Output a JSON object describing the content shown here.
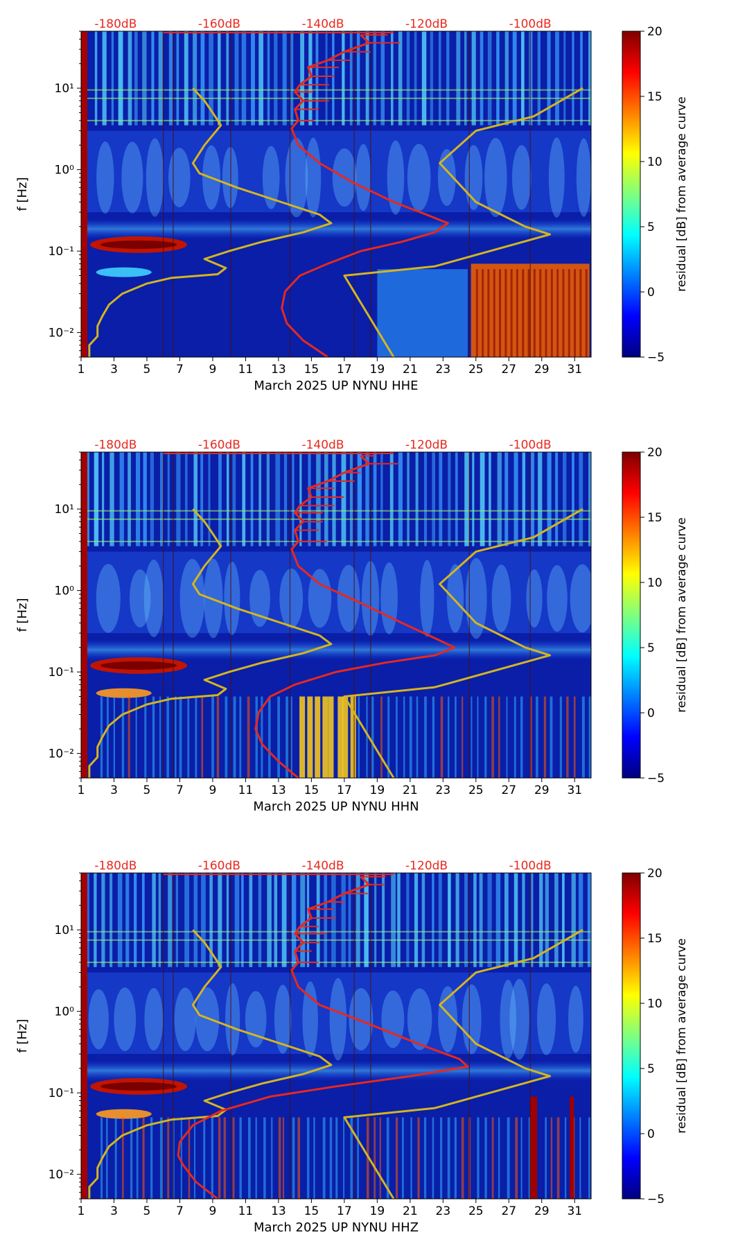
{
  "chart_data": [
    {
      "type": "heatmap",
      "xlabel": "March 2025 UP NYNU  HHE",
      "ylabel": "f [Hz]",
      "colorbar_label": "residual [dB] from average curve",
      "colorbar_ticks": [
        "−5",
        "0",
        "5",
        "10",
        "15",
        "20"
      ],
      "colorbar_range": [
        -5,
        20
      ],
      "x_ticks": [
        "1",
        "3",
        "5",
        "7",
        "9",
        "11",
        "13",
        "15",
        "17",
        "19",
        "21",
        "23",
        "25",
        "27",
        "29",
        "31"
      ],
      "y_ticks": [
        "10⁻²",
        "10⁻¹",
        "10⁰",
        "10¹"
      ],
      "top_labels": [
        "-180dB",
        "-160dB",
        "-140dB",
        "-120dB",
        "-100dB"
      ],
      "xlim": [
        1,
        32
      ],
      "ylim": [
        0.005,
        50
      ],
      "yscale": "log",
      "series": [
        {
          "color": "#d4b520",
          "x": [
            1.5,
            1.5,
            2.0,
            2.0,
            2.3,
            2.7,
            3.5,
            5.0,
            6.5,
            9.3,
            9.8,
            8.5,
            10.0,
            12.0,
            14.5,
            16.2,
            15.5,
            13.5,
            10.5,
            8.2,
            7.8,
            8.5,
            9.5,
            9.0,
            8.5,
            8.0,
            7.8
          ],
          "y": [
            0.005,
            0.007,
            0.009,
            0.012,
            0.016,
            0.022,
            0.03,
            0.04,
            0.047,
            0.052,
            0.062,
            0.08,
            0.1,
            0.13,
            0.17,
            0.22,
            0.28,
            0.38,
            0.6,
            0.9,
            1.2,
            2.0,
            3.5,
            5.0,
            7.0,
            9.0,
            10.0
          ]
        },
        {
          "color": "#e8281e",
          "x": [
            16.0,
            14.5,
            13.5,
            13.2,
            13.4,
            14.3,
            16.0,
            18.0,
            20.5,
            22.5,
            23.3,
            22.0,
            20.0,
            17.5,
            15.5,
            14.2,
            13.8,
            14.2,
            14.0,
            14.5,
            14.0,
            14.3,
            15.0,
            14.8,
            16.0,
            17.0,
            18.5,
            18.0
          ],
          "y": [
            0.005,
            0.008,
            0.013,
            0.02,
            0.032,
            0.05,
            0.07,
            0.1,
            0.13,
            0.17,
            0.22,
            0.28,
            0.4,
            0.7,
            1.2,
            2.0,
            3.2,
            4.0,
            5.5,
            7.0,
            9.0,
            11.0,
            14.0,
            18.0,
            22.0,
            28.0,
            36.0,
            45.0
          ]
        },
        {
          "color": "#d4b520",
          "x": [
            20.0,
            17.0,
            22.5,
            29.5,
            28.0,
            25.0,
            22.8,
            25.0,
            28.5,
            31.5
          ],
          "y": [
            0.005,
            0.05,
            0.065,
            0.16,
            0.2,
            0.4,
            1.2,
            3.0,
            4.5,
            10.0
          ]
        }
      ]
    },
    {
      "type": "heatmap",
      "xlabel": "March 2025 UP NYNU  HHN",
      "ylabel": "f [Hz]",
      "colorbar_label": "residual [dB] from average curve",
      "colorbar_ticks": [
        "−5",
        "0",
        "5",
        "10",
        "15",
        "20"
      ],
      "colorbar_range": [
        -5,
        20
      ],
      "x_ticks": [
        "1",
        "3",
        "5",
        "7",
        "9",
        "11",
        "13",
        "15",
        "17",
        "19",
        "21",
        "23",
        "25",
        "27",
        "29",
        "31"
      ],
      "y_ticks": [
        "10⁻²",
        "10⁻¹",
        "10⁰",
        "10¹"
      ],
      "top_labels": [
        "-180dB",
        "-160dB",
        "-140dB",
        "-120dB",
        "-100dB"
      ],
      "xlim": [
        1,
        32
      ],
      "ylim": [
        0.005,
        50
      ],
      "yscale": "log",
      "series": [
        {
          "color": "#d4b520",
          "x": [
            1.5,
            1.5,
            2.0,
            2.0,
            2.3,
            2.7,
            3.5,
            5.0,
            6.5,
            9.3,
            9.8,
            8.5,
            10.0,
            12.0,
            14.5,
            16.2,
            15.5,
            13.5,
            10.5,
            8.2,
            7.8,
            8.5,
            9.5,
            9.0,
            8.5,
            8.0,
            7.8
          ],
          "y": [
            0.005,
            0.007,
            0.009,
            0.012,
            0.016,
            0.022,
            0.03,
            0.04,
            0.047,
            0.052,
            0.062,
            0.08,
            0.1,
            0.13,
            0.17,
            0.22,
            0.28,
            0.38,
            0.6,
            0.9,
            1.2,
            2.0,
            3.5,
            5.0,
            7.0,
            9.0,
            10.0
          ]
        },
        {
          "color": "#e8281e",
          "x": [
            14.2,
            13.0,
            12.0,
            11.6,
            11.8,
            12.5,
            14.0,
            16.5,
            19.5,
            22.5,
            23.7,
            22.5,
            20.5,
            18.0,
            15.5,
            14.2,
            13.8,
            14.2,
            14.0,
            14.5,
            14.0,
            14.3,
            15.0,
            14.8,
            16.0,
            17.0,
            18.5,
            18.0
          ],
          "y": [
            0.005,
            0.008,
            0.013,
            0.02,
            0.032,
            0.05,
            0.07,
            0.1,
            0.13,
            0.16,
            0.2,
            0.26,
            0.4,
            0.7,
            1.2,
            2.0,
            3.2,
            4.0,
            5.5,
            7.0,
            9.0,
            11.0,
            14.0,
            18.0,
            22.0,
            28.0,
            36.0,
            45.0
          ]
        },
        {
          "color": "#d4b520",
          "x": [
            20.0,
            17.0,
            22.5,
            29.5,
            28.0,
            25.0,
            22.8,
            25.0,
            28.5,
            31.5
          ],
          "y": [
            0.005,
            0.05,
            0.065,
            0.16,
            0.2,
            0.4,
            1.2,
            3.0,
            4.5,
            10.0
          ]
        }
      ]
    },
    {
      "type": "heatmap",
      "xlabel": "March 2025 UP NYNU  HHZ",
      "ylabel": "f [Hz]",
      "colorbar_label": "residual [dB] from average curve",
      "colorbar_ticks": [
        "−5",
        "0",
        "5",
        "10",
        "15",
        "20"
      ],
      "colorbar_range": [
        -5,
        20
      ],
      "x_ticks": [
        "1",
        "3",
        "5",
        "7",
        "9",
        "11",
        "13",
        "15",
        "17",
        "19",
        "21",
        "23",
        "25",
        "27",
        "29",
        "31"
      ],
      "y_ticks": [
        "10⁻²",
        "10⁻¹",
        "10⁰",
        "10¹"
      ],
      "top_labels": [
        "-180dB",
        "-160dB",
        "-140dB",
        "-120dB",
        "-100dB"
      ],
      "xlim": [
        1,
        32
      ],
      "ylim": [
        0.005,
        50
      ],
      "yscale": "log",
      "series": [
        {
          "color": "#d4b520",
          "x": [
            1.5,
            1.5,
            2.0,
            2.0,
            2.3,
            2.7,
            3.5,
            5.0,
            6.5,
            9.3,
            9.8,
            8.5,
            10.0,
            12.0,
            14.5,
            16.2,
            15.5,
            13.5,
            10.5,
            8.2,
            7.8,
            8.5,
            9.5,
            9.0,
            8.5,
            8.0,
            7.8
          ],
          "y": [
            0.005,
            0.007,
            0.009,
            0.012,
            0.016,
            0.022,
            0.03,
            0.04,
            0.047,
            0.052,
            0.062,
            0.08,
            0.1,
            0.13,
            0.17,
            0.22,
            0.28,
            0.38,
            0.6,
            0.9,
            1.2,
            2.0,
            3.5,
            5.0,
            7.0,
            9.0,
            10.0
          ]
        },
        {
          "color": "#e8281e",
          "x": [
            9.3,
            8.0,
            7.2,
            6.9,
            7.0,
            7.8,
            9.5,
            12.5,
            16.5,
            21.0,
            24.5,
            24.0,
            21.5,
            18.5,
            15.5,
            14.2,
            13.8,
            14.2,
            14.0,
            14.5,
            14.0,
            14.3,
            15.0,
            14.8,
            16.0,
            17.0,
            18.5,
            18.0
          ],
          "y": [
            0.005,
            0.008,
            0.013,
            0.017,
            0.025,
            0.04,
            0.06,
            0.09,
            0.12,
            0.16,
            0.21,
            0.26,
            0.4,
            0.7,
            1.2,
            2.0,
            3.2,
            4.0,
            5.5,
            7.0,
            9.0,
            11.0,
            14.0,
            18.0,
            22.0,
            28.0,
            36.0,
            45.0
          ]
        },
        {
          "color": "#d4b520",
          "x": [
            20.0,
            17.0,
            22.5,
            29.5,
            28.0,
            25.0,
            22.8,
            25.0,
            28.5,
            31.5
          ],
          "y": [
            0.005,
            0.05,
            0.065,
            0.16,
            0.2,
            0.4,
            1.2,
            3.0,
            4.5,
            10.0
          ]
        }
      ]
    }
  ],
  "colors": {
    "top_label": "#e8281e",
    "red_curve": "#e8281e",
    "yellow_curve": "#d4b520",
    "colormap": [
      "#00007f",
      "#0000ff",
      "#007fff",
      "#00ffff",
      "#7fff7f",
      "#ffff00",
      "#ff7f00",
      "#ff0000",
      "#7f0000"
    ]
  }
}
